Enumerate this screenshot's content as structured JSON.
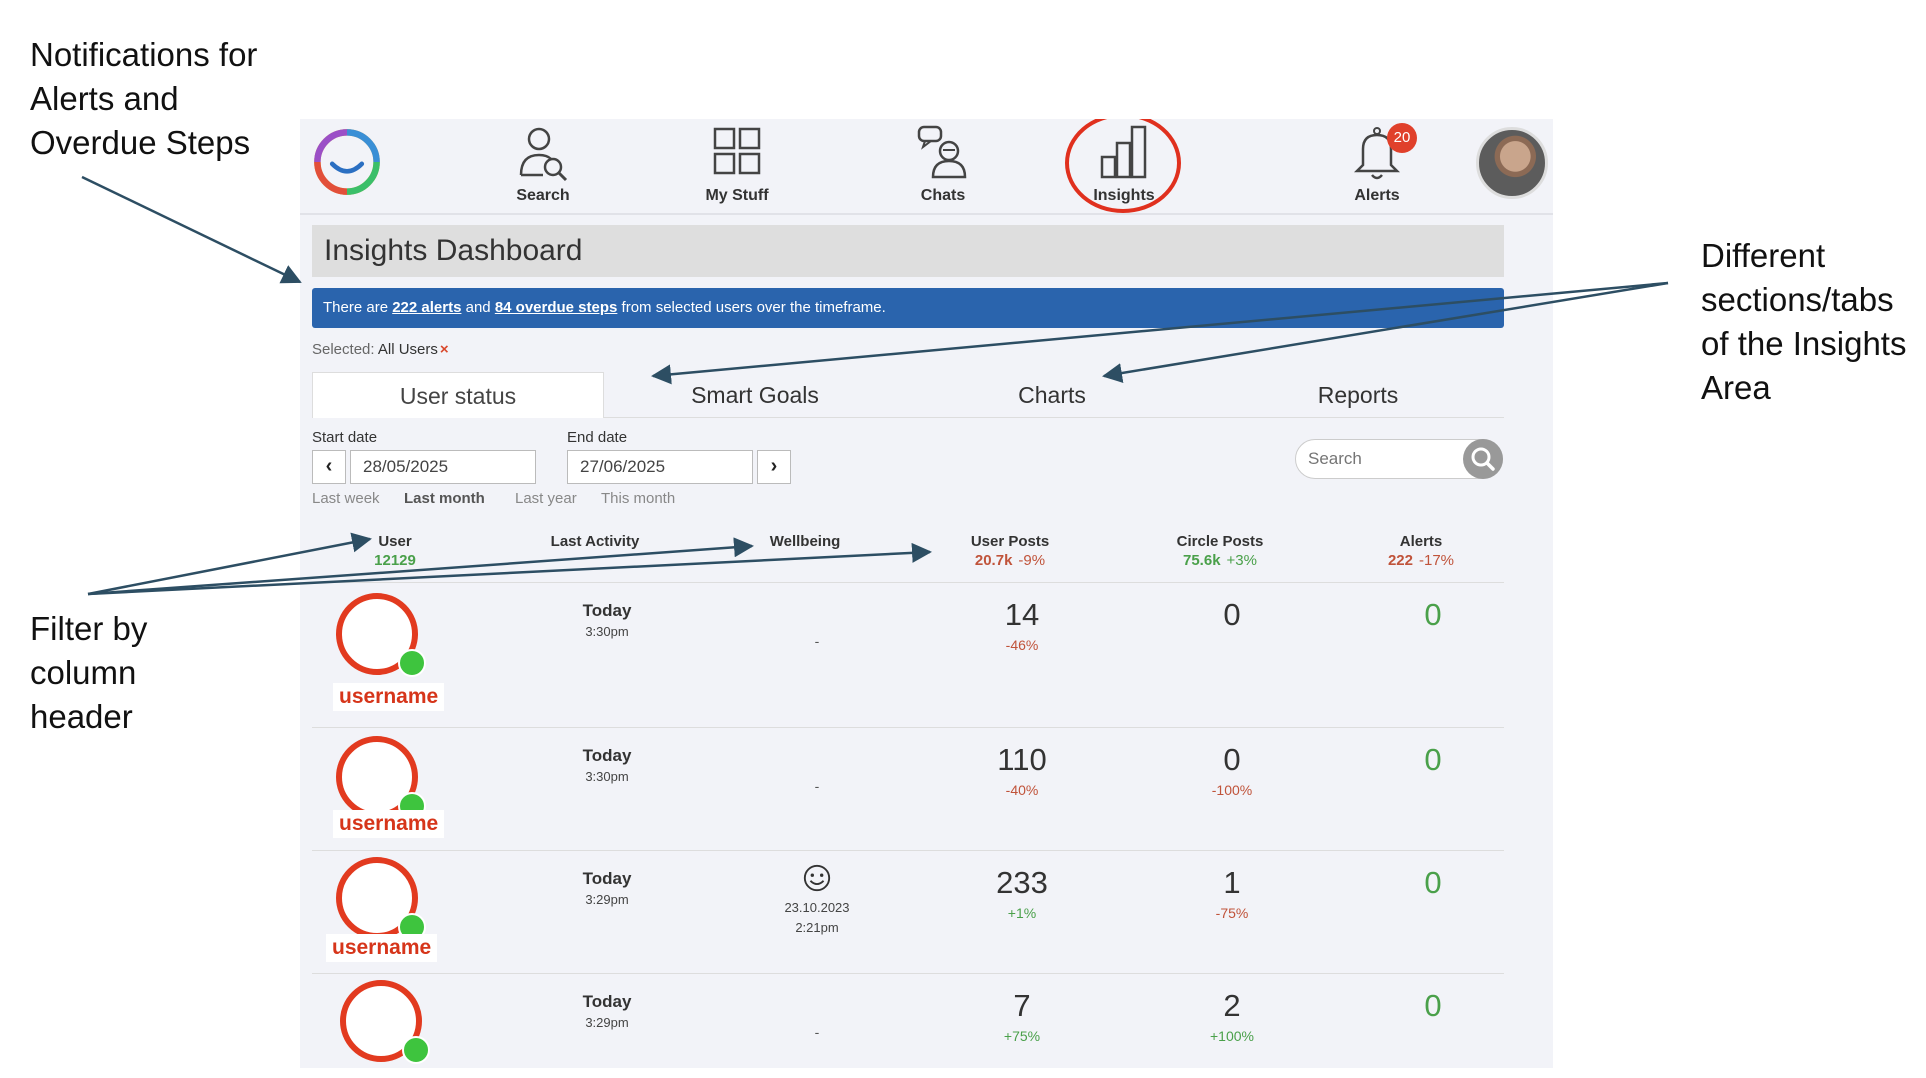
{
  "annotations": {
    "notifications": [
      "Notifications for",
      "Alerts and",
      "Overdue Steps"
    ],
    "sections": [
      "Different",
      "sections/tabs",
      "of the Insights",
      "Area"
    ],
    "filter": [
      "Filter by",
      "column",
      "header"
    ]
  },
  "nav": {
    "items": [
      {
        "label": "Search",
        "icon": "search-user-icon"
      },
      {
        "label": "My Stuff",
        "icon": "grid-icon"
      },
      {
        "label": "Chats",
        "icon": "chat-icon"
      },
      {
        "label": "Insights",
        "icon": "bar-chart-icon"
      },
      {
        "label": "Alerts",
        "icon": "bell-icon"
      }
    ],
    "alerts_badge": "20",
    "highlight_color": "#e0301e"
  },
  "page_title": "Insights Dashboard",
  "banner": {
    "prefix": "There are ",
    "alerts_link": "222 alerts",
    "middle": " and ",
    "overdue_link": "84 overdue steps",
    "suffix": " from selected users over the timeframe.",
    "color": "#2a64ad"
  },
  "selected": {
    "label": "Selected:",
    "value": "All Users",
    "remove": "×"
  },
  "tabs": [
    "User status",
    "Smart Goals",
    "Charts",
    "Reports"
  ],
  "dates": {
    "start_label": "Start date",
    "start_value": "28/05/2025",
    "end_label": "End date",
    "end_value": "27/06/2025",
    "prev": "‹",
    "next": "›",
    "quick": [
      "Last week",
      "Last month",
      "Last year",
      "This month"
    ]
  },
  "search": {
    "placeholder": "Search"
  },
  "columns": {
    "user": {
      "label": "User",
      "total": "12129"
    },
    "last_activity": {
      "label": "Last Activity"
    },
    "wellbeing": {
      "label": "Wellbeing"
    },
    "user_posts": {
      "label": "User Posts",
      "total": "20.7k",
      "change": "-9%"
    },
    "circle_posts": {
      "label": "Circle Posts",
      "total": "75.6k",
      "change": "+3%"
    },
    "alerts": {
      "label": "Alerts",
      "total": "222",
      "change": "-17%"
    }
  },
  "rows": [
    {
      "username": "username",
      "day": "Today",
      "time": "3:30pm",
      "wellbeing": "-",
      "wb_date": "",
      "wb_time": "",
      "user_posts": "14",
      "user_posts_change": "-46%",
      "circle_posts": "0",
      "circle_posts_change": "",
      "alerts": "0"
    },
    {
      "username": "username",
      "day": "Today",
      "time": "3:30pm",
      "wellbeing": "-",
      "wb_date": "",
      "wb_time": "",
      "user_posts": "110",
      "user_posts_change": "-40%",
      "circle_posts": "0",
      "circle_posts_change": "-100%",
      "alerts": "0"
    },
    {
      "username": "username",
      "day": "Today",
      "time": "3:29pm",
      "wellbeing": "",
      "wb_date": "23.10.2023",
      "wb_time": "2:21pm",
      "user_posts": "233",
      "user_posts_change": "+1%",
      "circle_posts": "1",
      "circle_posts_change": "-75%",
      "alerts": "0"
    },
    {
      "username": "",
      "day": "Today",
      "time": "3:29pm",
      "wellbeing": "-",
      "wb_date": "",
      "wb_time": "",
      "user_posts": "7",
      "user_posts_change": "+75%",
      "circle_posts": "2",
      "circle_posts_change": "+100%",
      "alerts": "0"
    }
  ]
}
